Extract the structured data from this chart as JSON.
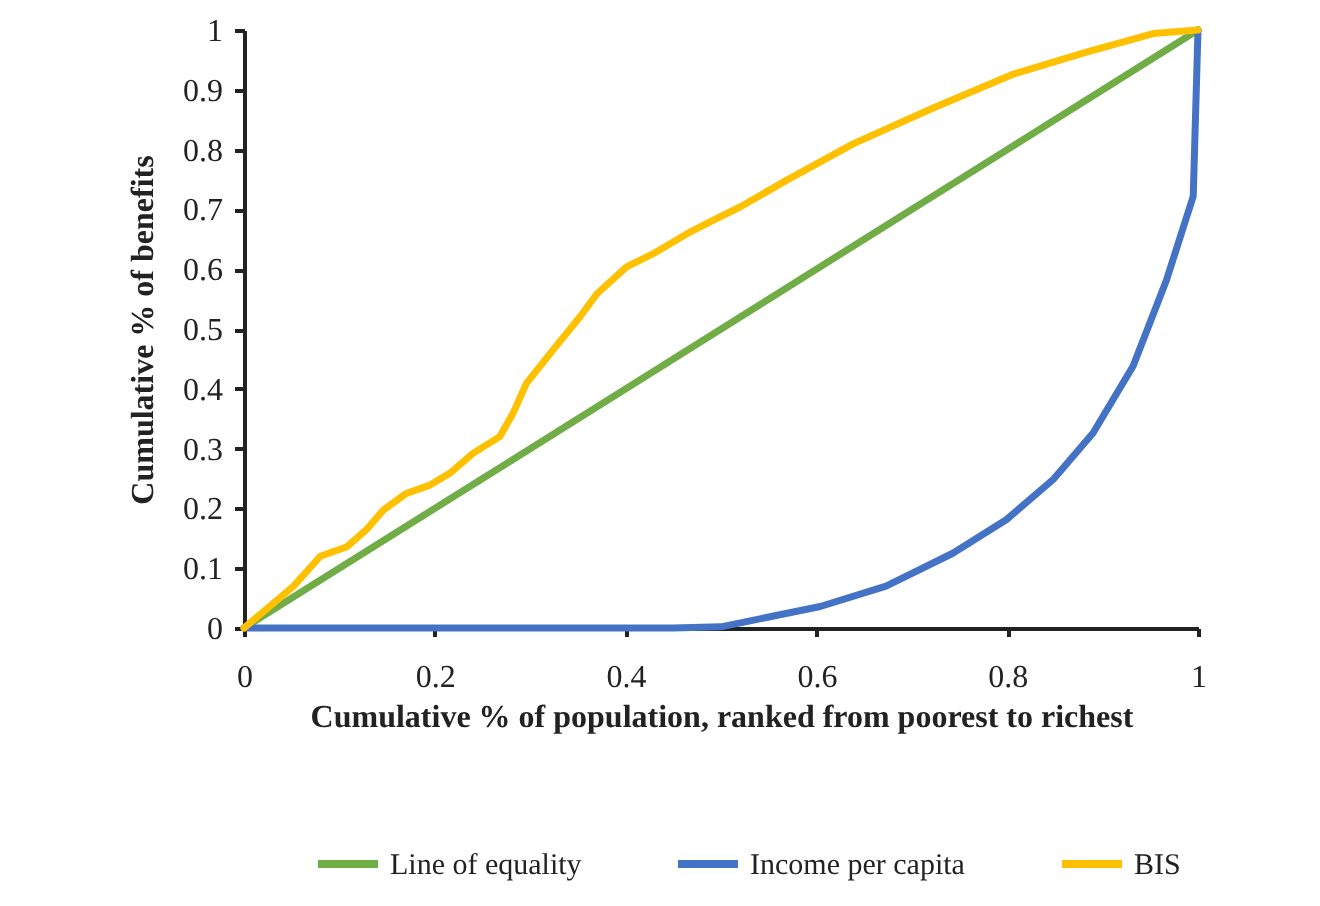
{
  "chart_data": {
    "type": "line",
    "xlabel": "Cumulative % of population, ranked from poorest to richest",
    "ylabel": "Cumulative % of benefits",
    "xlim": [
      0,
      1
    ],
    "xticks": [
      0,
      0.2,
      0.4,
      0.6,
      0.8,
      1
    ],
    "ylim": [
      0,
      1
    ],
    "yticks": [
      0,
      0.1,
      0.2,
      0.3,
      0.4,
      0.5,
      0.6,
      0.7,
      0.8,
      0.9,
      1
    ],
    "grid": false,
    "legend": "bottom",
    "marker": "none",
    "line_style": "solid",
    "series": [
      {
        "name": "Line of equality",
        "color": "#70ad47",
        "x": [
          0,
          1
        ],
        "values": [
          0,
          1
        ]
      },
      {
        "name": "Income per capita",
        "color": "#4472c4",
        "x": [
          0,
          0.45,
          0.5,
          0.604,
          0.673,
          0.743,
          0.799,
          0.848,
          0.89,
          0.932,
          0.967,
          0.995,
          1
        ],
        "values": [
          0,
          0,
          0.002,
          0.036,
          0.07,
          0.125,
          0.181,
          0.248,
          0.326,
          0.438,
          0.582,
          0.722,
          1
        ]
      },
      {
        "name": "BIS",
        "color": "#ffc000",
        "x": [
          0,
          0.052,
          0.08,
          0.108,
          0.128,
          0.146,
          0.17,
          0.195,
          0.216,
          0.24,
          0.268,
          0.282,
          0.296,
          0.324,
          0.352,
          0.37,
          0.401,
          0.429,
          0.464,
          0.492,
          0.52,
          0.569,
          0.639,
          0.723,
          0.806,
          0.883,
          0.953,
          1
        ],
        "values": [
          0,
          0.07,
          0.12,
          0.136,
          0.164,
          0.197,
          0.225,
          0.239,
          0.259,
          0.292,
          0.32,
          0.359,
          0.409,
          0.465,
          0.52,
          0.559,
          0.604,
          0.626,
          0.659,
          0.682,
          0.704,
          0.749,
          0.81,
          0.87,
          0.926,
          0.963,
          0.994,
          1
        ]
      }
    ]
  }
}
